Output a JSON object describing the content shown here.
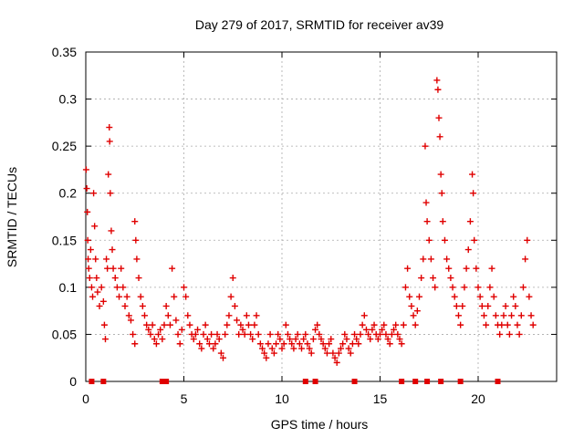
{
  "chart_data": {
    "type": "scatter",
    "title": "Day 279 of 2017, SRMTID for receiver av39",
    "xlabel": "GPS time / hours",
    "ylabel": "SRMTID / TECUs",
    "xlim": [
      0,
      24
    ],
    "ylim": [
      0,
      0.35
    ],
    "x_ticks": [
      0,
      5,
      10,
      15,
      20
    ],
    "x_tick_labels": [
      "0",
      "5",
      "10",
      "15",
      "20"
    ],
    "y_ticks": [
      0,
      0.05,
      0.1,
      0.15,
      0.2,
      0.25,
      0.3,
      0.35
    ],
    "y_tick_labels": [
      "0",
      "0.05",
      "0.1",
      "0.15",
      "0.2",
      "0.25",
      "0.3",
      "0.35"
    ],
    "grid": true,
    "marker": "+",
    "color": "#e00000",
    "series": [
      {
        "name": "SRMTID",
        "points": [
          [
            0.02,
            0.225
          ],
          [
            0.05,
            0.205
          ],
          [
            0.08,
            0.18
          ],
          [
            0.1,
            0.15
          ],
          [
            0.12,
            0.13
          ],
          [
            0.15,
            0.12
          ],
          [
            0.2,
            0.11
          ],
          [
            0.25,
            0.14
          ],
          [
            0.3,
            0.1
          ],
          [
            0.35,
            0.09
          ],
          [
            0.4,
            0.2
          ],
          [
            0.45,
            0.165
          ],
          [
            0.5,
            0.13
          ],
          [
            0.55,
            0.11
          ],
          [
            0.6,
            0.095
          ],
          [
            0.7,
            0.08
          ],
          [
            0.8,
            0.1
          ],
          [
            0.9,
            0.085
          ],
          [
            0.95,
            0.06
          ],
          [
            1.0,
            0.045
          ],
          [
            1.05,
            0.13
          ],
          [
            1.1,
            0.12
          ],
          [
            1.15,
            0.22
          ],
          [
            1.2,
            0.27
          ],
          [
            1.22,
            0.255
          ],
          [
            1.25,
            0.2
          ],
          [
            1.3,
            0.16
          ],
          [
            1.35,
            0.14
          ],
          [
            1.4,
            0.12
          ],
          [
            1.5,
            0.11
          ],
          [
            1.6,
            0.1
          ],
          [
            1.7,
            0.09
          ],
          [
            1.8,
            0.12
          ],
          [
            1.9,
            0.1
          ],
          [
            2.0,
            0.08
          ],
          [
            2.1,
            0.09
          ],
          [
            2.2,
            0.07
          ],
          [
            2.3,
            0.065
          ],
          [
            2.4,
            0.05
          ],
          [
            2.5,
            0.04
          ],
          [
            2.5,
            0.17
          ],
          [
            2.55,
            0.15
          ],
          [
            2.6,
            0.13
          ],
          [
            2.7,
            0.11
          ],
          [
            2.8,
            0.09
          ],
          [
            2.9,
            0.08
          ],
          [
            3.0,
            0.07
          ],
          [
            3.1,
            0.06
          ],
          [
            3.2,
            0.055
          ],
          [
            3.3,
            0.05
          ],
          [
            3.4,
            0.06
          ],
          [
            3.5,
            0.045
          ],
          [
            3.6,
            0.04
          ],
          [
            3.7,
            0.05
          ],
          [
            3.8,
            0.055
          ],
          [
            3.9,
            0.045
          ],
          [
            4.0,
            0.06
          ],
          [
            4.1,
            0.08
          ],
          [
            4.2,
            0.07
          ],
          [
            4.3,
            0.06
          ],
          [
            4.4,
            0.12
          ],
          [
            4.5,
            0.09
          ],
          [
            4.6,
            0.065
          ],
          [
            4.7,
            0.05
          ],
          [
            4.8,
            0.04
          ],
          [
            4.9,
            0.055
          ],
          [
            5.0,
            0.1
          ],
          [
            5.1,
            0.09
          ],
          [
            5.2,
            0.07
          ],
          [
            5.3,
            0.06
          ],
          [
            5.4,
            0.05
          ],
          [
            5.5,
            0.045
          ],
          [
            5.6,
            0.05
          ],
          [
            5.7,
            0.055
          ],
          [
            5.8,
            0.04
          ],
          [
            5.9,
            0.035
          ],
          [
            6.0,
            0.05
          ],
          [
            6.1,
            0.06
          ],
          [
            6.2,
            0.045
          ],
          [
            6.3,
            0.04
          ],
          [
            6.4,
            0.05
          ],
          [
            6.5,
            0.035
          ],
          [
            6.6,
            0.04
          ],
          [
            6.7,
            0.05
          ],
          [
            6.8,
            0.045
          ],
          [
            6.9,
            0.03
          ],
          [
            7.0,
            0.025
          ],
          [
            7.1,
            0.05
          ],
          [
            7.2,
            0.06
          ],
          [
            7.3,
            0.07
          ],
          [
            7.4,
            0.09
          ],
          [
            7.5,
            0.11
          ],
          [
            7.6,
            0.08
          ],
          [
            7.7,
            0.065
          ],
          [
            7.8,
            0.05
          ],
          [
            7.9,
            0.06
          ],
          [
            8.0,
            0.055
          ],
          [
            8.1,
            0.05
          ],
          [
            8.2,
            0.07
          ],
          [
            8.3,
            0.06
          ],
          [
            8.4,
            0.05
          ],
          [
            8.5,
            0.045
          ],
          [
            8.6,
            0.06
          ],
          [
            8.7,
            0.07
          ],
          [
            8.8,
            0.05
          ],
          [
            8.9,
            0.04
          ],
          [
            9.0,
            0.035
          ],
          [
            9.1,
            0.03
          ],
          [
            9.2,
            0.025
          ],
          [
            9.3,
            0.04
          ],
          [
            9.4,
            0.05
          ],
          [
            9.5,
            0.035
          ],
          [
            9.6,
            0.03
          ],
          [
            9.7,
            0.04
          ],
          [
            9.8,
            0.05
          ],
          [
            9.9,
            0.045
          ],
          [
            10.0,
            0.035
          ],
          [
            10.1,
            0.04
          ],
          [
            10.2,
            0.06
          ],
          [
            10.3,
            0.05
          ],
          [
            10.4,
            0.045
          ],
          [
            10.5,
            0.04
          ],
          [
            10.6,
            0.035
          ],
          [
            10.7,
            0.045
          ],
          [
            10.8,
            0.05
          ],
          [
            10.9,
            0.04
          ],
          [
            11.0,
            0.035
          ],
          [
            11.1,
            0.045
          ],
          [
            11.2,
            0.05
          ],
          [
            11.3,
            0.04
          ],
          [
            11.4,
            0.035
          ],
          [
            11.5,
            0.03
          ],
          [
            11.6,
            0.045
          ],
          [
            11.7,
            0.055
          ],
          [
            11.8,
            0.06
          ],
          [
            11.9,
            0.05
          ],
          [
            12.0,
            0.045
          ],
          [
            12.1,
            0.04
          ],
          [
            12.2,
            0.035
          ],
          [
            12.3,
            0.03
          ],
          [
            12.4,
            0.04
          ],
          [
            12.5,
            0.045
          ],
          [
            12.6,
            0.03
          ],
          [
            12.7,
            0.025
          ],
          [
            12.8,
            0.02
          ],
          [
            12.9,
            0.03
          ],
          [
            13.0,
            0.035
          ],
          [
            13.1,
            0.04
          ],
          [
            13.2,
            0.05
          ],
          [
            13.3,
            0.045
          ],
          [
            13.4,
            0.035
          ],
          [
            13.5,
            0.03
          ],
          [
            13.6,
            0.04
          ],
          [
            13.7,
            0.05
          ],
          [
            13.8,
            0.045
          ],
          [
            13.9,
            0.04
          ],
          [
            14.0,
            0.05
          ],
          [
            14.1,
            0.06
          ],
          [
            14.2,
            0.07
          ],
          [
            14.3,
            0.055
          ],
          [
            14.4,
            0.05
          ],
          [
            14.5,
            0.045
          ],
          [
            14.6,
            0.055
          ],
          [
            14.7,
            0.06
          ],
          [
            14.8,
            0.05
          ],
          [
            14.9,
            0.045
          ],
          [
            15.0,
            0.05
          ],
          [
            15.1,
            0.055
          ],
          [
            15.2,
            0.06
          ],
          [
            15.3,
            0.05
          ],
          [
            15.4,
            0.045
          ],
          [
            15.5,
            0.04
          ],
          [
            15.6,
            0.05
          ],
          [
            15.7,
            0.055
          ],
          [
            15.8,
            0.06
          ],
          [
            15.9,
            0.05
          ],
          [
            16.0,
            0.045
          ],
          [
            16.1,
            0.04
          ],
          [
            16.2,
            0.06
          ],
          [
            16.3,
            0.1
          ],
          [
            16.4,
            0.12
          ],
          [
            16.5,
            0.09
          ],
          [
            16.6,
            0.08
          ],
          [
            16.7,
            0.07
          ],
          [
            16.8,
            0.06
          ],
          [
            16.9,
            0.075
          ],
          [
            17.0,
            0.09
          ],
          [
            17.1,
            0.11
          ],
          [
            17.2,
            0.13
          ],
          [
            17.3,
            0.25
          ],
          [
            17.35,
            0.19
          ],
          [
            17.4,
            0.17
          ],
          [
            17.5,
            0.15
          ],
          [
            17.6,
            0.13
          ],
          [
            17.7,
            0.11
          ],
          [
            17.8,
            0.1
          ],
          [
            17.9,
            0.32
          ],
          [
            17.95,
            0.31
          ],
          [
            18.0,
            0.28
          ],
          [
            18.05,
            0.26
          ],
          [
            18.1,
            0.22
          ],
          [
            18.15,
            0.2
          ],
          [
            18.2,
            0.17
          ],
          [
            18.3,
            0.15
          ],
          [
            18.4,
            0.13
          ],
          [
            18.5,
            0.12
          ],
          [
            18.6,
            0.11
          ],
          [
            18.7,
            0.1
          ],
          [
            18.8,
            0.09
          ],
          [
            18.9,
            0.08
          ],
          [
            19.0,
            0.07
          ],
          [
            19.1,
            0.06
          ],
          [
            19.2,
            0.08
          ],
          [
            19.3,
            0.1
          ],
          [
            19.4,
            0.12
          ],
          [
            19.5,
            0.14
          ],
          [
            19.6,
            0.17
          ],
          [
            19.7,
            0.22
          ],
          [
            19.75,
            0.2
          ],
          [
            19.8,
            0.15
          ],
          [
            19.9,
            0.12
          ],
          [
            20.0,
            0.1
          ],
          [
            20.1,
            0.09
          ],
          [
            20.2,
            0.08
          ],
          [
            20.3,
            0.07
          ],
          [
            20.4,
            0.06
          ],
          [
            20.5,
            0.08
          ],
          [
            20.6,
            0.1
          ],
          [
            20.7,
            0.12
          ],
          [
            20.8,
            0.09
          ],
          [
            20.9,
            0.07
          ],
          [
            21.0,
            0.06
          ],
          [
            21.1,
            0.05
          ],
          [
            21.2,
            0.06
          ],
          [
            21.3,
            0.07
          ],
          [
            21.4,
            0.08
          ],
          [
            21.5,
            0.06
          ],
          [
            21.6,
            0.05
          ],
          [
            21.7,
            0.07
          ],
          [
            21.8,
            0.09
          ],
          [
            21.9,
            0.08
          ],
          [
            22.0,
            0.06
          ],
          [
            22.1,
            0.05
          ],
          [
            22.2,
            0.07
          ],
          [
            22.3,
            0.1
          ],
          [
            22.4,
            0.13
          ],
          [
            22.5,
            0.15
          ],
          [
            22.6,
            0.09
          ],
          [
            22.7,
            0.07
          ],
          [
            22.8,
            0.06
          ]
        ]
      }
    ],
    "zero_markers_x": [
      0.3,
      0.9,
      3.9,
      4.1,
      11.2,
      11.7,
      13.7,
      16.1,
      16.8,
      17.4,
      18.1,
      19.1,
      21.0
    ]
  }
}
